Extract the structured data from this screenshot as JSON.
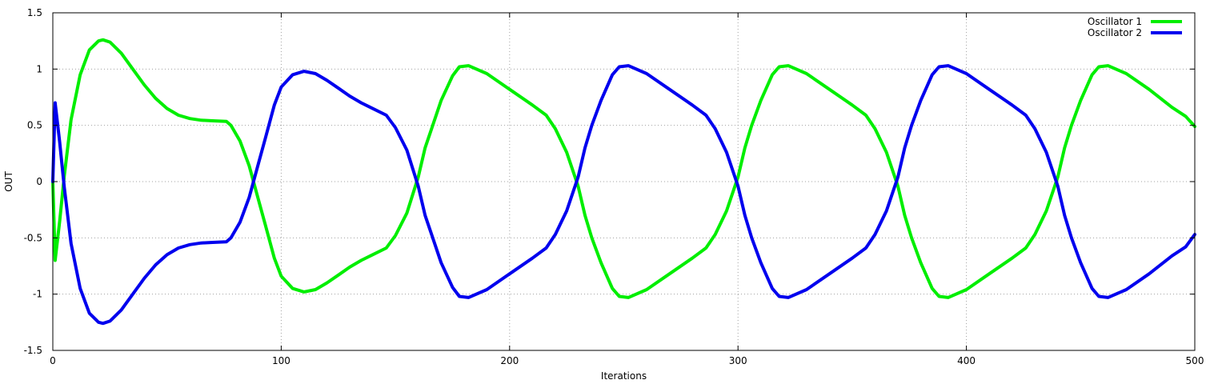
{
  "chart_data": {
    "type": "line",
    "title": "",
    "xlabel": "Iterations",
    "ylabel": "OUT",
    "xlim": [
      0,
      500
    ],
    "ylim": [
      -1.5,
      1.5
    ],
    "x_ticks": [
      0,
      100,
      200,
      300,
      400,
      500
    ],
    "x_tick_labels": [
      "0",
      "100",
      "200",
      "300",
      "400",
      "500"
    ],
    "y_ticks": [
      1.5,
      1,
      0.5,
      0,
      -0.5,
      -1,
      -1.5
    ],
    "y_tick_labels": [
      "1.5",
      "1",
      "0.5",
      "0",
      "-0.5",
      "-1",
      "-1.5"
    ],
    "grid": true,
    "legend_position": "top-right",
    "series": [
      {
        "name": "Oscillator 1",
        "color": "#00ee00",
        "x": [
          0,
          1,
          3,
          5,
          8,
          12,
          16,
          20,
          22,
          25,
          30,
          35,
          40,
          45,
          50,
          55,
          60,
          65,
          70,
          76,
          78,
          82,
          86,
          90,
          93,
          97,
          100,
          105,
          110,
          115,
          120,
          125,
          130,
          135,
          140,
          146,
          150,
          155,
          160,
          163,
          166,
          170,
          175,
          178,
          182,
          190,
          200,
          210,
          216,
          220,
          225,
          230,
          233,
          236,
          240,
          245,
          248,
          252,
          260,
          270,
          280,
          286,
          290,
          295,
          300,
          303,
          306,
          310,
          315,
          318,
          322,
          330,
          340,
          350,
          356,
          360,
          365,
          370,
          373,
          376,
          380,
          385,
          388,
          392,
          400,
          410,
          420,
          426,
          430,
          435,
          440,
          443,
          446,
          450,
          455,
          458,
          462,
          470,
          480,
          490,
          496,
          500
        ],
        "y": [
          0.0,
          -0.7,
          -0.35,
          0.05,
          0.55,
          0.95,
          1.17,
          1.25,
          1.26,
          1.24,
          1.14,
          1.0,
          0.86,
          0.74,
          0.65,
          0.59,
          0.56,
          0.545,
          0.54,
          0.535,
          0.5,
          0.36,
          0.14,
          -0.16,
          -0.38,
          -0.68,
          -0.84,
          -0.95,
          -0.98,
          -0.96,
          -0.9,
          -0.83,
          -0.76,
          -0.7,
          -0.65,
          -0.59,
          -0.48,
          -0.28,
          0.04,
          0.3,
          0.48,
          0.72,
          0.94,
          1.02,
          1.03,
          0.96,
          0.82,
          0.68,
          0.59,
          0.47,
          0.26,
          -0.04,
          -0.3,
          -0.5,
          -0.72,
          -0.95,
          -1.02,
          -1.03,
          -0.96,
          -0.82,
          -0.68,
          -0.59,
          -0.47,
          -0.26,
          0.04,
          0.3,
          0.5,
          0.72,
          0.95,
          1.02,
          1.03,
          0.96,
          0.82,
          0.68,
          0.59,
          0.47,
          0.26,
          -0.04,
          -0.3,
          -0.5,
          -0.72,
          -0.95,
          -1.02,
          -1.03,
          -0.96,
          -0.82,
          -0.68,
          -0.59,
          -0.47,
          -0.26,
          0.04,
          0.3,
          0.5,
          0.72,
          0.95,
          1.02,
          1.03,
          0.96,
          0.82,
          0.66,
          0.58,
          0.49
        ]
      },
      {
        "name": "Oscillator 2",
        "color": "#0000ee",
        "x": [
          0,
          1,
          3,
          5,
          8,
          12,
          16,
          20,
          22,
          25,
          30,
          35,
          40,
          45,
          50,
          55,
          60,
          65,
          70,
          76,
          78,
          82,
          86,
          90,
          93,
          97,
          100,
          105,
          110,
          115,
          120,
          125,
          130,
          135,
          140,
          146,
          150,
          155,
          160,
          163,
          166,
          170,
          175,
          178,
          182,
          190,
          200,
          210,
          216,
          220,
          225,
          230,
          233,
          236,
          240,
          245,
          248,
          252,
          260,
          270,
          280,
          286,
          290,
          295,
          300,
          303,
          306,
          310,
          315,
          318,
          322,
          330,
          340,
          350,
          356,
          360,
          365,
          370,
          373,
          376,
          380,
          385,
          388,
          392,
          400,
          410,
          420,
          426,
          430,
          435,
          440,
          443,
          446,
          450,
          455,
          458,
          462,
          470,
          480,
          490,
          496,
          500
        ],
        "y": [
          0.0,
          0.7,
          0.35,
          -0.05,
          -0.55,
          -0.95,
          -1.17,
          -1.25,
          -1.26,
          -1.24,
          -1.14,
          -1.0,
          -0.86,
          -0.74,
          -0.65,
          -0.59,
          -0.56,
          -0.545,
          -0.54,
          -0.535,
          -0.5,
          -0.36,
          -0.14,
          0.16,
          0.38,
          0.68,
          0.84,
          0.95,
          0.98,
          0.96,
          0.9,
          0.83,
          0.76,
          0.7,
          0.65,
          0.59,
          0.48,
          0.28,
          -0.04,
          -0.3,
          -0.48,
          -0.72,
          -0.94,
          -1.02,
          -1.03,
          -0.96,
          -0.82,
          -0.68,
          -0.59,
          -0.47,
          -0.26,
          0.04,
          0.3,
          0.5,
          0.72,
          0.95,
          1.02,
          1.03,
          0.96,
          0.82,
          0.68,
          0.59,
          0.47,
          0.26,
          -0.04,
          -0.3,
          -0.5,
          -0.72,
          -0.95,
          -1.02,
          -1.03,
          -0.96,
          -0.82,
          -0.68,
          -0.59,
          -0.47,
          -0.26,
          0.04,
          0.3,
          0.5,
          0.72,
          0.95,
          1.02,
          1.03,
          0.96,
          0.82,
          0.68,
          0.59,
          0.47,
          0.26,
          -0.04,
          -0.3,
          -0.5,
          -0.72,
          -0.95,
          -1.02,
          -1.03,
          -0.96,
          -0.82,
          -0.66,
          -0.58,
          -0.47
        ]
      }
    ]
  }
}
